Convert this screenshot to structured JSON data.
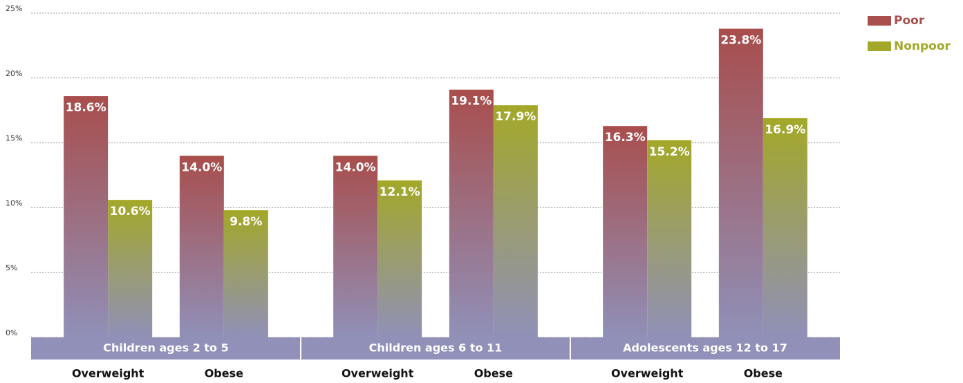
{
  "chart_data": {
    "type": "grouped_bar",
    "categories": [
      "Overweight",
      "Obese",
      "Overweight",
      "Obese",
      "Overweight",
      "Obese"
    ],
    "groups": [
      "Children ages 2 to 5",
      "Children ages 6 to 11",
      "Adolescents ages 12 to 17"
    ],
    "series": [
      {
        "name": "Poor",
        "color": "#a84e4c",
        "values": [
          18.6,
          14.0,
          14.0,
          19.1,
          16.3,
          23.8
        ],
        "value_labels": [
          "18.6%",
          "14.0%",
          "14.0%",
          "19.1%",
          "16.3%",
          "23.8%"
        ]
      },
      {
        "name": "Nonpoor",
        "color": "#a3a828",
        "values": [
          10.6,
          9.8,
          12.1,
          17.9,
          15.2,
          16.9
        ],
        "value_labels": [
          "10.6%",
          "9.8%",
          "12.1%",
          "17.9%",
          "15.2%",
          "16.9%"
        ]
      }
    ],
    "ylim": [
      0,
      25
    ],
    "yticks": [
      {
        "value": 0,
        "label": "0%"
      },
      {
        "value": 5,
        "label": "5%"
      },
      {
        "value": 10,
        "label": "10%"
      },
      {
        "value": 15,
        "label": "15%"
      },
      {
        "value": 20,
        "label": "20%"
      },
      {
        "value": 25,
        "label": "25%"
      }
    ],
    "grid": true,
    "legend": "top-right"
  }
}
